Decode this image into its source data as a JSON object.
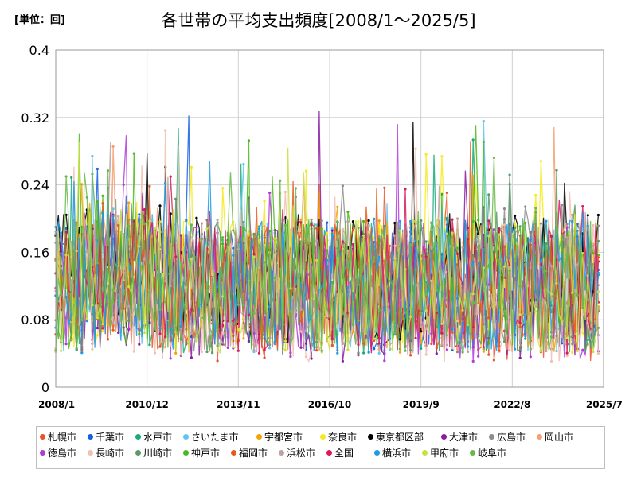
{
  "unit_label": "[単位：回]",
  "chart_data": {
    "type": "line",
    "title": "各世帯の平均支出頻度[2008/1～2025/5]",
    "xlabel": "",
    "ylabel": "",
    "ylim": [
      0,
      0.4
    ],
    "yticks": [
      "0",
      "0.08",
      "0.16",
      "0.24",
      "0.32",
      "0.4"
    ],
    "xticks": [
      "2008/1",
      "2010/12",
      "2013/11",
      "2016/10",
      "2019/9",
      "2022/8",
      "2025/7"
    ],
    "x_start": "2008/1",
    "x_end": "2025/7",
    "grid": true,
    "legend_position": "bottom",
    "series": [
      {
        "name": "札幌市",
        "color": "#e8542a",
        "base": 0.11
      },
      {
        "name": "千葉市",
        "color": "#1a5fe0",
        "base": 0.12
      },
      {
        "name": "水戸市",
        "color": "#1aaa7a",
        "base": 0.12
      },
      {
        "name": "さいたま市",
        "color": "#5ec4f2",
        "base": 0.12
      },
      {
        "name": "宇都宮市",
        "color": "#f5a300",
        "base": 0.12
      },
      {
        "name": "奈良市",
        "color": "#f4ea1c",
        "base": 0.12
      },
      {
        "name": "東京都区部",
        "color": "#000000",
        "base": 0.13
      },
      {
        "name": "大津市",
        "color": "#8a1aa0",
        "base": 0.11
      },
      {
        "name": "広島市",
        "color": "#8c8c8c",
        "base": 0.12
      },
      {
        "name": "岡山市",
        "color": "#f4a070",
        "base": 0.12
      },
      {
        "name": "徳島市",
        "color": "#b23ad8",
        "base": 0.11
      },
      {
        "name": "長崎市",
        "color": "#f0c0b0",
        "base": 0.11
      },
      {
        "name": "川崎市",
        "color": "#5a9a6a",
        "base": 0.12
      },
      {
        "name": "神戸市",
        "color": "#4ab81a",
        "base": 0.12
      },
      {
        "name": "福岡市",
        "color": "#e85a1a",
        "base": 0.12
      },
      {
        "name": "浜松市",
        "color": "#c0a0a0",
        "base": 0.12
      },
      {
        "name": "全国",
        "color": "#d81a5a",
        "base": 0.12
      },
      {
        "name": "横浜市",
        "color": "#1a9ae8",
        "base": 0.12
      },
      {
        "name": "甲府市",
        "color": "#c8e040",
        "base": 0.12
      },
      {
        "name": "岐阜市",
        "color": "#6ab84a",
        "base": 0.12
      }
    ]
  }
}
